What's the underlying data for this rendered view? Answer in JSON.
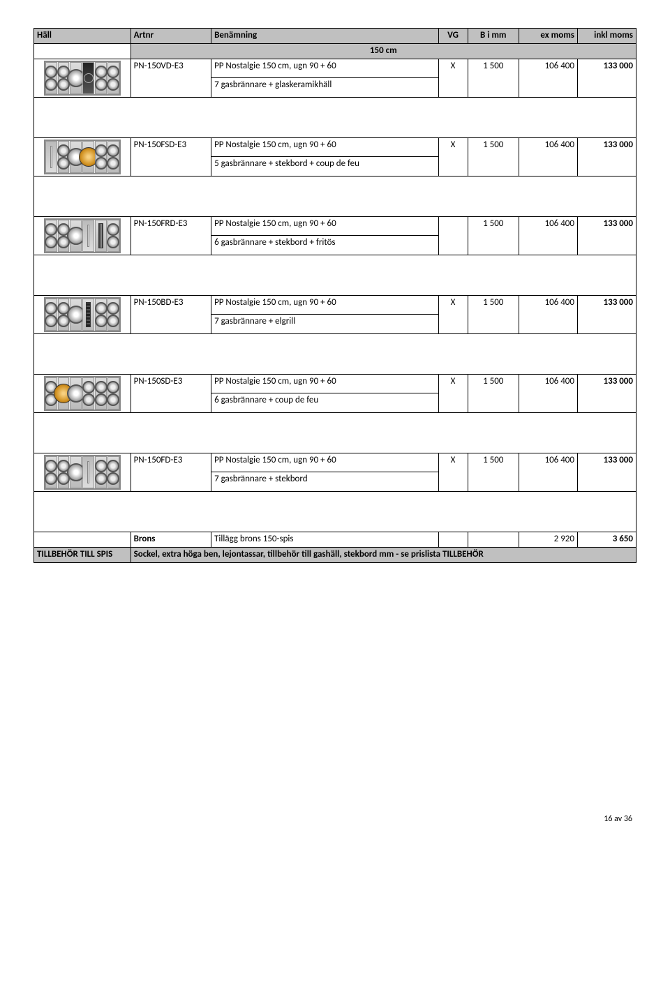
{
  "columns": {
    "c1": "Häll",
    "c2": "Artnr",
    "c3": "Benämning",
    "c4": "VG",
    "c5": "B i mm",
    "c6": "ex moms",
    "c7": "inkl moms"
  },
  "section_title": "150 cm",
  "rows": [
    {
      "art": "PN-150VD-E3",
      "name": "PP Nostalgie 150 cm, ugn 90 + 60",
      "sub": "7 gasbrännare + glaskeramikhäll",
      "vg": "X",
      "b": "1 500",
      "ex": "106 400",
      "ink": "133 000",
      "panels": [
        "burner",
        "burner",
        "single-burner",
        "ceramic",
        "burner",
        "burner"
      ]
    },
    {
      "art": "PN-150FSD-E3",
      "name": "PP Nostalgie 150 cm, ugn 90 + 60",
      "sub": "5 gasbrännare + stekbord + coup de feu",
      "vg": "X",
      "b": "1 500",
      "ex": "106 400",
      "ink": "133 000",
      "panels": [
        "plate",
        "burner",
        "single-burner",
        "coup",
        "burner",
        "burner"
      ]
    },
    {
      "art": "PN-150FRD-E3",
      "name": "PP Nostalgie 150 cm, ugn 90 + 60",
      "sub": "6 gasbrännare + stekbord + fritös",
      "vg": "",
      "b": "1 500",
      "ex": "106 400",
      "ink": "133 000",
      "panels": [
        "burner",
        "burner",
        "single-burner",
        "plate",
        "fryer",
        "burner"
      ]
    },
    {
      "art": "PN-150BD-E3",
      "name": "PP Nostalgie 150 cm, ugn 90 + 60",
      "sub": "7 gasbrännare + elgrill",
      "vg": "X",
      "b": "1 500",
      "ex": "106 400",
      "ink": "133 000",
      "panels": [
        "burner",
        "burner",
        "single-burner",
        "grill",
        "burner",
        "burner"
      ]
    },
    {
      "art": "PN-150SD-E3",
      "name": "PP Nostalgie 150 cm, ugn 90 + 60",
      "sub": "6 gasbrännare + coup de feu",
      "vg": "X",
      "b": "1 500",
      "ex": "106 400",
      "ink": "133 000",
      "panels": [
        "burner",
        "coup",
        "single-burner",
        "burner",
        "burner",
        "burner"
      ]
    },
    {
      "art": "PN-150FD-E3",
      "name": "PP Nostalgie 150 cm, ugn 90 + 60",
      "sub": "7 gasbrännare + stekbord",
      "vg": "X",
      "b": "1 500",
      "ex": "106 400",
      "ink": "133 000",
      "panels": [
        "burner",
        "burner",
        "single-burner",
        "plate",
        "burner",
        "burner"
      ]
    }
  ],
  "brons": {
    "label": "Brons",
    "desc": "Tillägg brons 150-spis",
    "ex": "2 920",
    "ink": "3 650"
  },
  "tillbehor": {
    "label": "TILLBEHÖR TILL SPIS",
    "text": "Sockel, extra höga ben, lejontassar, tillbehör till gashäll, stekbord mm - se prislista TILLBEHÖR"
  },
  "page": "16 av 36"
}
